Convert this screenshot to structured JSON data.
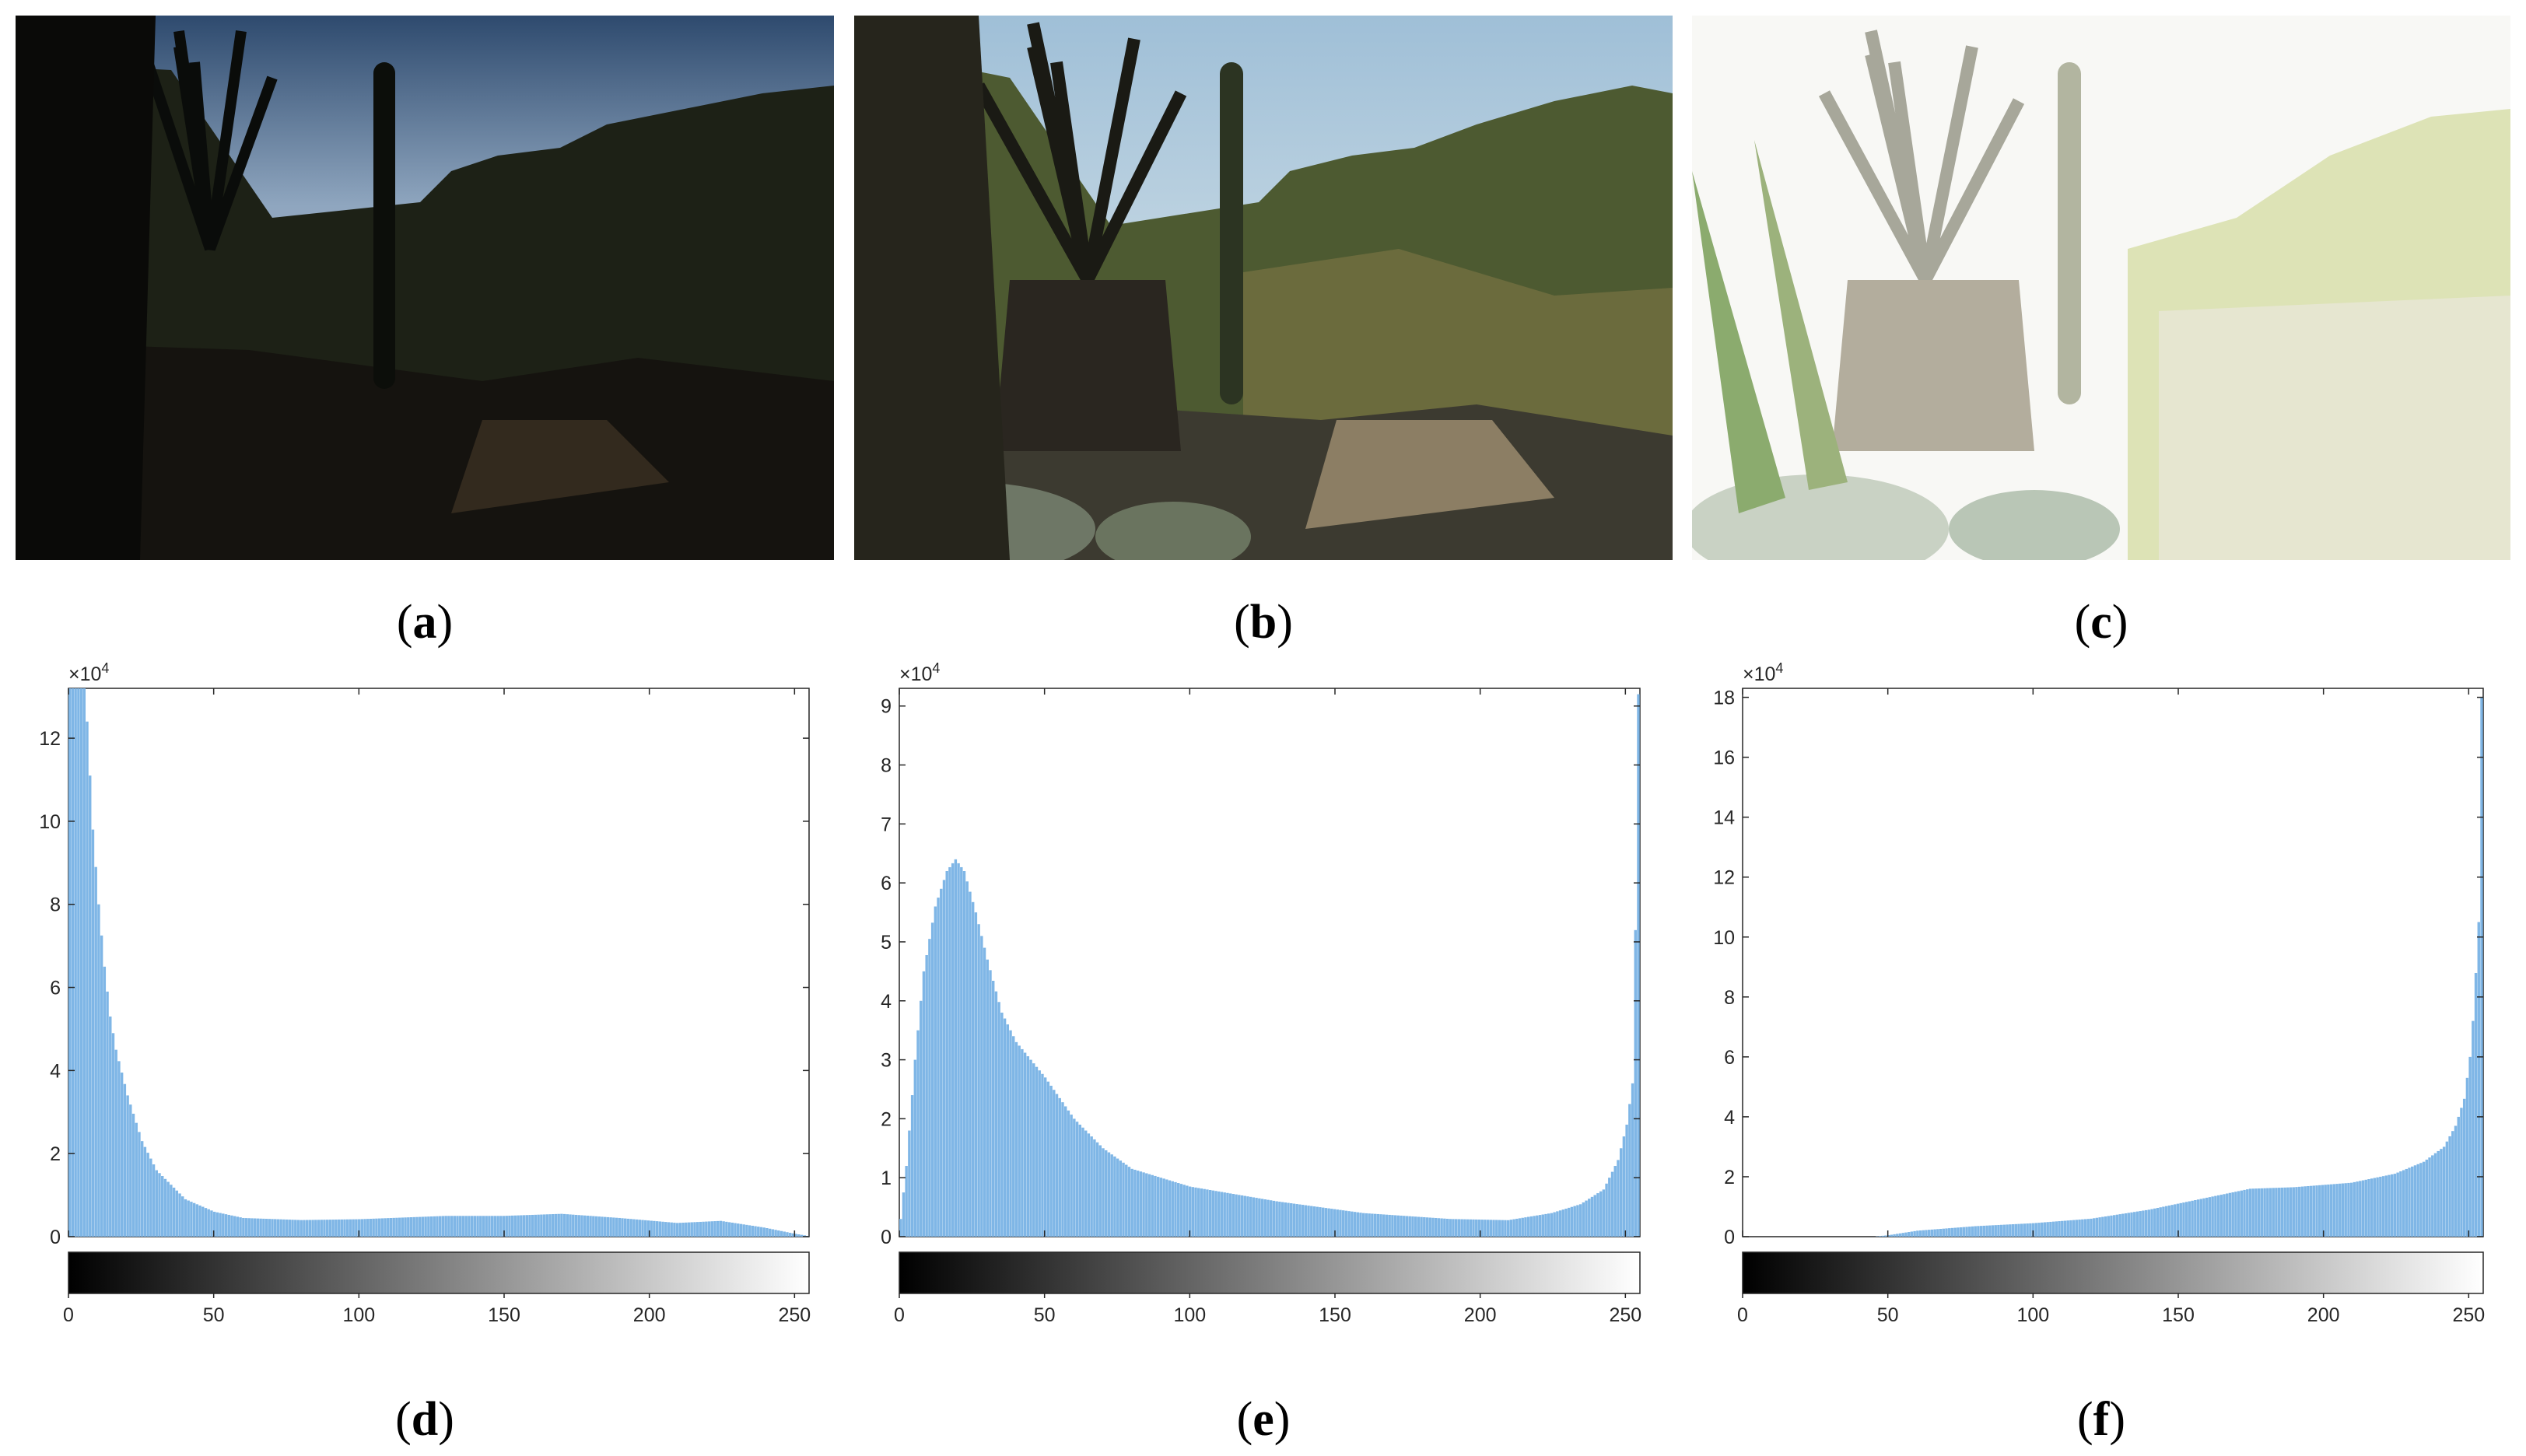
{
  "panels": [
    {
      "letter": "a"
    },
    {
      "letter": "b"
    },
    {
      "letter": "c"
    },
    {
      "letter": "d"
    },
    {
      "letter": "e"
    },
    {
      "letter": "f"
    }
  ],
  "colors": {
    "bar": "#7fb6e6",
    "axis": "#262626"
  },
  "chart_data": [
    {
      "type": "bar",
      "panel": "d",
      "xlim": [
        0,
        255
      ],
      "x_ticks": [
        0,
        50,
        100,
        150,
        200,
        250
      ],
      "ylim": [
        0,
        13.2
      ],
      "y_ticks": [
        0,
        2,
        4,
        6,
        8,
        10,
        12
      ],
      "y_multiplier": "×10",
      "y_multiplier_exp": "4",
      "colorbar": true,
      "profile": [
        [
          0,
          13.2
        ],
        [
          5,
          13.2
        ],
        [
          6,
          12.4
        ],
        [
          8,
          9.8
        ],
        [
          10,
          8
        ],
        [
          12,
          6.5
        ],
        [
          14,
          5.3
        ],
        [
          16,
          4.5
        ],
        [
          20,
          3.4
        ],
        [
          25,
          2.3
        ],
        [
          30,
          1.6
        ],
        [
          40,
          0.9
        ],
        [
          50,
          0.6
        ],
        [
          60,
          0.45
        ],
        [
          80,
          0.4
        ],
        [
          100,
          0.42
        ],
        [
          130,
          0.5
        ],
        [
          150,
          0.5
        ],
        [
          170,
          0.55
        ],
        [
          190,
          0.45
        ],
        [
          210,
          0.33
        ],
        [
          225,
          0.38
        ],
        [
          240,
          0.22
        ],
        [
          250,
          0.08
        ],
        [
          255,
          0.02
        ]
      ]
    },
    {
      "type": "bar",
      "panel": "e",
      "xlim": [
        0,
        255
      ],
      "x_ticks": [
        0,
        50,
        100,
        150,
        200,
        250
      ],
      "ylim": [
        0,
        9.3
      ],
      "y_ticks": [
        0,
        1,
        2,
        3,
        4,
        5,
        6,
        7,
        8,
        9
      ],
      "y_multiplier": "×10",
      "y_multiplier_exp": "4",
      "colorbar": true,
      "profile": [
        [
          0,
          0.3
        ],
        [
          2,
          1.2
        ],
        [
          5,
          3.0
        ],
        [
          8,
          4.5
        ],
        [
          12,
          5.6
        ],
        [
          16,
          6.2
        ],
        [
          19,
          6.4
        ],
        [
          22,
          6.2
        ],
        [
          26,
          5.5
        ],
        [
          30,
          4.7
        ],
        [
          35,
          3.8
        ],
        [
          40,
          3.3
        ],
        [
          50,
          2.7
        ],
        [
          60,
          2.0
        ],
        [
          70,
          1.5
        ],
        [
          80,
          1.15
        ],
        [
          100,
          0.85
        ],
        [
          130,
          0.6
        ],
        [
          160,
          0.4
        ],
        [
          190,
          0.3
        ],
        [
          210,
          0.28
        ],
        [
          225,
          0.4
        ],
        [
          235,
          0.55
        ],
        [
          243,
          0.8
        ],
        [
          248,
          1.3
        ],
        [
          251,
          1.9
        ],
        [
          253,
          2.6
        ],
        [
          254,
          5.2
        ],
        [
          255,
          9.2
        ]
      ]
    },
    {
      "type": "bar",
      "panel": "f",
      "xlim": [
        0,
        255
      ],
      "x_ticks": [
        0,
        50,
        100,
        150,
        200,
        250
      ],
      "ylim": [
        0,
        18.3
      ],
      "y_ticks": [
        0,
        2,
        4,
        6,
        8,
        10,
        12,
        14,
        16,
        18
      ],
      "y_multiplier": "×10",
      "y_multiplier_exp": "4",
      "colorbar": true,
      "profile": [
        [
          0,
          0
        ],
        [
          45,
          0
        ],
        [
          50,
          0.05
        ],
        [
          60,
          0.2
        ],
        [
          80,
          0.35
        ],
        [
          100,
          0.45
        ],
        [
          120,
          0.6
        ],
        [
          140,
          0.9
        ],
        [
          160,
          1.3
        ],
        [
          175,
          1.6
        ],
        [
          190,
          1.65
        ],
        [
          210,
          1.8
        ],
        [
          225,
          2.1
        ],
        [
          235,
          2.5
        ],
        [
          242,
          3.0
        ],
        [
          246,
          3.7
        ],
        [
          249,
          4.6
        ],
        [
          251,
          6.0
        ],
        [
          252,
          7.2
        ],
        [
          253,
          8.8
        ],
        [
          254,
          10.5
        ],
        [
          255,
          18.0
        ]
      ]
    }
  ]
}
